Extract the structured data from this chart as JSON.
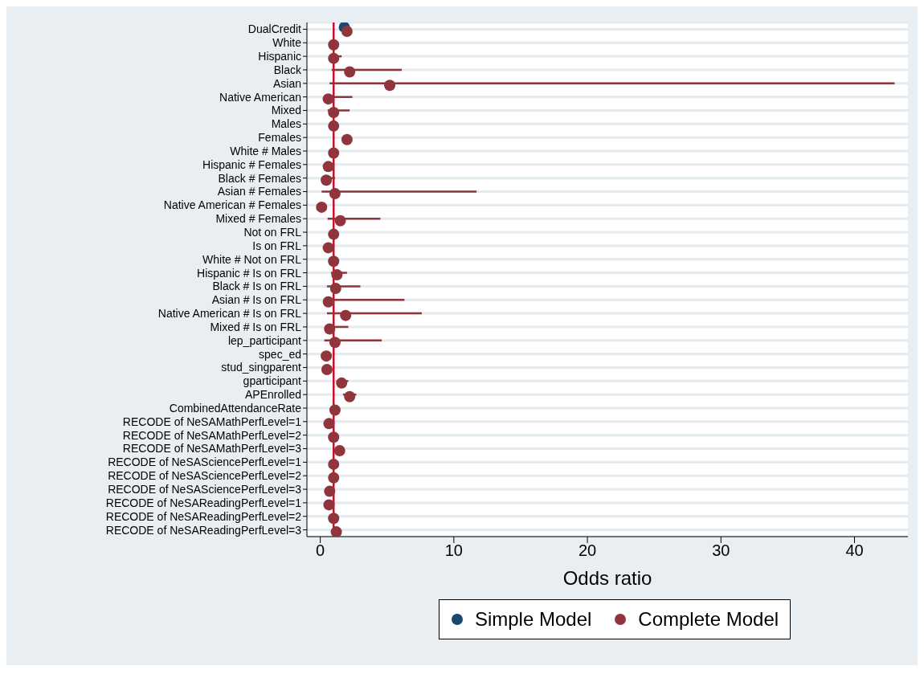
{
  "chart_data": {
    "type": "scatter",
    "orientation": "horizontal",
    "xlabel": "Odds ratio",
    "xlim": [
      -1,
      44
    ],
    "xticks": [
      0,
      10,
      20,
      30,
      40
    ],
    "grid": "y",
    "legend": "bottom",
    "marker": "circle",
    "categories": [
      "DualCredit",
      "White",
      "Hispanic",
      "Black",
      "Asian",
      "Native American",
      "Mixed",
      "Males",
      "Females",
      "White # Males",
      "Hispanic # Females",
      "Black # Females",
      "Asian # Females",
      "Native American # Females",
      "Mixed # Females",
      "Not on FRL",
      "Is on FRL",
      "White # Not on FRL",
      "Hispanic # Is on FRL",
      "Black # Is on FRL",
      "Asian # Is on FRL",
      "Native American # Is on FRL",
      "Mixed # Is on FRL",
      "lep_participant",
      "spec_ed",
      "stud_singparent",
      "gparticipant",
      "APEnrolled",
      "CombinedAttendanceRate",
      "RECODE of NeSAMathPerfLevel=1",
      "RECODE of NeSAMathPerfLevel=2",
      "RECODE of NeSAMathPerfLevel=3",
      "RECODE of NeSASciencePerfLevel=1",
      "RECODE of NeSASciencePerfLevel=2",
      "RECODE of NeSASciencePerfLevel=3",
      "RECODE of NeSAReadingPerfLevel=1",
      "RECODE of NeSAReadingPerfLevel=2",
      "RECODE of NeSAReadingPerfLevel=3"
    ],
    "ref_lines": [
      {
        "axis": "x",
        "value": 1,
        "color": "#c8102e"
      }
    ],
    "series": [
      {
        "name": "Simple Model",
        "color": "#1a476f",
        "values": [
          1.8,
          null,
          null,
          null,
          null,
          null,
          null,
          null,
          null,
          null,
          null,
          null,
          null,
          null,
          null,
          null,
          null,
          null,
          null,
          null,
          null,
          null,
          null,
          null,
          null,
          null,
          null,
          null,
          null,
          null,
          null,
          null,
          null,
          null,
          null,
          null,
          null,
          null
        ]
      },
      {
        "name": "Complete Model",
        "color": "#90353b",
        "values": [
          2.0,
          1.0,
          1.0,
          2.2,
          5.2,
          0.6,
          1.0,
          1.0,
          2.0,
          1.0,
          0.6,
          0.45,
          1.1,
          0.1,
          1.5,
          1.0,
          0.6,
          1.0,
          1.25,
          1.15,
          0.6,
          1.9,
          0.7,
          1.1,
          0.45,
          0.5,
          1.6,
          2.2,
          1.1,
          0.65,
          1.0,
          1.45,
          1.0,
          1.0,
          0.7,
          0.65,
          1.0,
          1.2
        ],
        "errors": [
          null,
          null,
          [
            0.8,
            1.6
          ],
          [
            0.85,
            6.1
          ],
          [
            0.7,
            43.0
          ],
          [
            0.3,
            2.4
          ],
          [
            0.55,
            2.2
          ],
          null,
          null,
          null,
          null,
          [
            0.3,
            1.1
          ],
          [
            0.1,
            11.7
          ],
          null,
          [
            0.55,
            4.5
          ],
          null,
          null,
          null,
          [
            0.8,
            2.0
          ],
          [
            0.5,
            3.0
          ],
          [
            0.3,
            6.3
          ],
          [
            0.5,
            7.6
          ],
          [
            0.4,
            2.1
          ],
          [
            0.3,
            4.6
          ],
          null,
          null,
          [
            1.2,
            2.1
          ],
          [
            1.7,
            2.7
          ],
          null,
          null,
          null,
          null,
          null,
          null,
          null,
          null,
          null,
          null
        ]
      }
    ]
  }
}
